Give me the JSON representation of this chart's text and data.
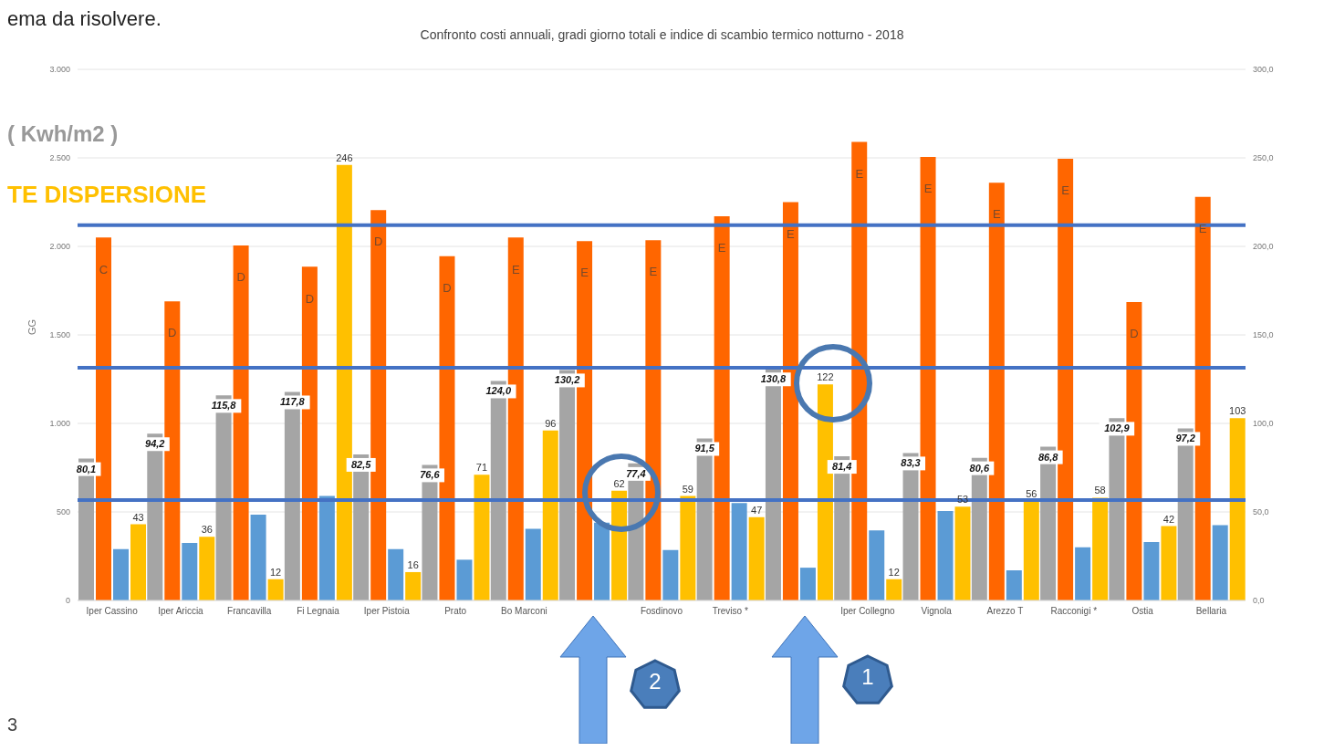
{
  "chart_data": {
    "type": "bar",
    "title": "Confronto costi annuali, gradi giorno totali e indice di scambio termico notturno - 2018",
    "ylabel": "GG",
    "categories": [
      "Iper Cassino",
      "Iper Ariccia",
      "Francavilla",
      "Fi Legnaia",
      "Iper Pistoia",
      "Prato",
      "Bo Marconi",
      null,
      "Fosdinovo",
      "Treviso  *",
      null,
      "Iper Collegno",
      "Vignola",
      "Arezzo T",
      "Racconigi *",
      "Ostia",
      "Bellaria"
    ],
    "series": [
      {
        "color": "#a5a5a5",
        "axis": "y2",
        "values": [
          80.1,
          94.2,
          115.8,
          117.8,
          82.5,
          76.6,
          124.0,
          130.2,
          77.4,
          91.5,
          130.8,
          81.4,
          83.3,
          80.6,
          86.8,
          102.9,
          97.2
        ],
        "value_labels": [
          "80,1",
          "94,2",
          "115,8",
          "117,8",
          "82,5",
          "76,6",
          "124,0",
          "130,2",
          "77,4",
          "91,5",
          "130,8",
          "81,4",
          "83,3",
          "80,6",
          "86,8",
          "102,9",
          "97,2"
        ]
      },
      {
        "color": "#ff6600",
        "values": [
          2050,
          1690,
          2005,
          1885,
          2205,
          1945,
          2050,
          2030,
          2035,
          2170,
          2250,
          2590,
          2505,
          2360,
          2495,
          1685,
          2280
        ],
        "value_labels": [
          "C",
          "D",
          "D",
          "D",
          "D",
          "D",
          "E",
          "E",
          "E",
          "E",
          "E",
          "E",
          "E",
          "E",
          "E",
          "D",
          "E"
        ]
      },
      {
        "color": "#5b9bd5",
        "values": [
          290,
          325,
          485,
          590,
          290,
          230,
          405,
          440,
          285,
          550,
          185,
          395,
          505,
          170,
          300,
          330,
          425
        ]
      },
      {
        "color": "#ffc000",
        "axis": "y2",
        "values": [
          43,
          36,
          12,
          246,
          16,
          71,
          96,
          62,
          59,
          47,
          122,
          12,
          53,
          56,
          58,
          42,
          103
        ],
        "value_labels": [
          "43",
          "36",
          "12",
          "246",
          "16",
          "71",
          "96",
          "62",
          "59",
          "47",
          "122",
          "12",
          "53",
          "56",
          "58",
          "42",
          "103"
        ]
      }
    ],
    "ylim": [
      0,
      3000
    ],
    "yticks": [
      0,
      {
        "value": 500,
        "label": "500"
      },
      {
        "value": 1000,
        "label": "1.000"
      },
      {
        "value": 1500,
        "label": "1.500"
      },
      {
        "value": 2000,
        "label": "2.000"
      },
      {
        "value": 2500,
        "label": "2.500"
      },
      {
        "value": 3000,
        "label": "3.000"
      }
    ],
    "y2lim": [
      0,
      300
    ],
    "y2ticks": [
      {
        "value": 0,
        "label": "0,0"
      },
      {
        "value": 50,
        "label": "50,0"
      },
      {
        "value": 100,
        "label": "100,0"
      },
      {
        "value": 150,
        "label": "150,0"
      },
      {
        "value": 200,
        "label": "200,0"
      },
      {
        "value": 250,
        "label": "250,0"
      },
      {
        "value": 300,
        "label": "300,0"
      }
    ],
    "grid": "y",
    "ref_lines": [
      {
        "axis": "y",
        "value": 2120,
        "color": "#4472c4"
      },
      {
        "axis": "y",
        "value": 1315,
        "color": "#4472c4"
      },
      {
        "axis": "y",
        "value": 567,
        "color": "#4472c4"
      }
    ],
    "annotations": [
      "ema da risolvere.",
      "( Kwh/m2 )",
      "TE DISPERSIONE",
      "3",
      "2",
      "1"
    ]
  }
}
